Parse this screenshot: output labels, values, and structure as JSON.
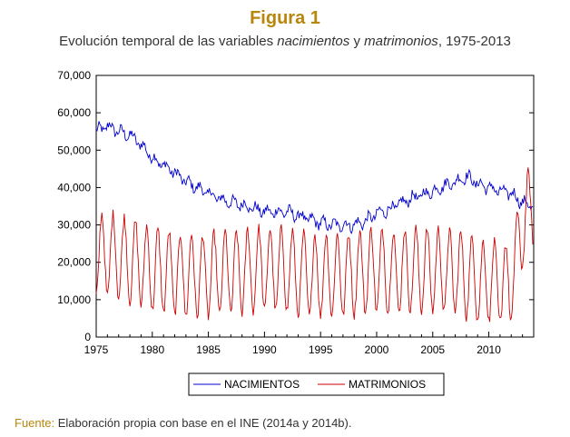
{
  "figure": {
    "title": "Figura 1",
    "subtitle": {
      "prefix": "Evolución temporal de las variables ",
      "var1": "nacimientos",
      "mid": " y ",
      "var2": "matrimonios",
      "suffix": ", 1975-2013"
    }
  },
  "source": {
    "label": "Fuente:",
    "text": " Elaboración propia con base en el INE (2014a y 2014b)."
  },
  "chart_data": {
    "type": "line",
    "frequency": "monthly",
    "x_range": [
      1975,
      2014
    ],
    "ylim": [
      0,
      70000
    ],
    "yticks": [
      0,
      10000,
      20000,
      30000,
      40000,
      50000,
      60000,
      70000
    ],
    "ytick_labels": [
      "0",
      "10,000",
      "20,000",
      "30,000",
      "40,000",
      "50,000",
      "60,000",
      "70,000"
    ],
    "xticks": [
      1975,
      1980,
      1985,
      1990,
      1995,
      2000,
      2005,
      2010
    ],
    "xtick_labels": [
      "1975",
      "1980",
      "1985",
      "1990",
      "1995",
      "2000",
      "2005",
      "2010"
    ],
    "grid": false,
    "legend_position": "bottom",
    "series": [
      {
        "name": "NACIMIENTOS",
        "color": "#0000cc",
        "annual_level": {
          "1975": 55000,
          "1976": 56500,
          "1977": 55000,
          "1978": 54000,
          "1979": 51500,
          "1980": 48000,
          "1981": 46000,
          "1982": 44000,
          "1983": 41500,
          "1984": 40000,
          "1985": 38500,
          "1986": 37000,
          "1987": 36000,
          "1988": 35500,
          "1989": 34500,
          "1990": 33500,
          "1991": 33500,
          "1992": 33500,
          "1993": 32500,
          "1994": 31500,
          "1995": 30500,
          "1996": 30000,
          "1997": 30000,
          "1998": 30000,
          "1999": 31000,
          "2000": 33000,
          "2001": 34000,
          "2002": 35500,
          "2003": 37000,
          "2004": 38000,
          "2005": 39000,
          "2006": 40500,
          "2007": 41500,
          "2008": 43000,
          "2009": 41000,
          "2010": 40000,
          "2011": 39000,
          "2012": 38500,
          "2013": 36000,
          "2014": 35000
        },
        "seasonal_amplitude": 2200
      },
      {
        "name": "MATRIMONIOS",
        "color": "#cc0000",
        "annual_level": {
          "1975": 22000,
          "1976": 22000,
          "1977": 21500,
          "1978": 20500,
          "1979": 19500,
          "1980": 18000,
          "1981": 17500,
          "1982": 17000,
          "1983": 16500,
          "1984": 16500,
          "1985": 16500,
          "1986": 17000,
          "1987": 17500,
          "1988": 17500,
          "1989": 18000,
          "1990": 18000,
          "1991": 18000,
          "1992": 18000,
          "1993": 17000,
          "1994": 16500,
          "1995": 16500,
          "1996": 16500,
          "1997": 16500,
          "1998": 17000,
          "1999": 17500,
          "2000": 18000,
          "2001": 17500,
          "2002": 17500,
          "2003": 18000,
          "2004": 18000,
          "2005": 18000,
          "2006": 17500,
          "2007": 17500,
          "2008": 16500,
          "2009": 15000,
          "2010": 14500,
          "2011": 14000,
          "2012": 14000,
          "2013": 30000,
          "2014": 36000
        },
        "seasonal_amplitude": 11000
      }
    ]
  }
}
